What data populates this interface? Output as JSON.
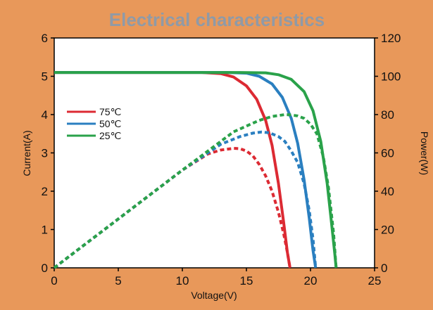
{
  "chart_data": {
    "type": "line",
    "title": "Electrical characteristics",
    "xlabel": "Voltage(V)",
    "ylabel_left": "Current(A)",
    "ylabel_right": "Power(W)",
    "xlim": [
      0,
      25
    ],
    "ylim_left": [
      0,
      6
    ],
    "ylim_right": [
      0,
      120
    ],
    "x_ticks": [
      0,
      5,
      10,
      15,
      20,
      25
    ],
    "y_left_ticks": [
      0,
      1,
      2,
      3,
      4,
      5,
      6
    ],
    "y_right_ticks": [
      0,
      20,
      40,
      60,
      80,
      100,
      120
    ],
    "grid": false,
    "legend_position": "left",
    "series": [
      {
        "name": "75℃",
        "color": "#dc2a33",
        "current": {
          "x": [
            0,
            11.5,
            13,
            14,
            15,
            15.8,
            16.5,
            17,
            17.5,
            17.9,
            18.2,
            18.4
          ],
          "y": [
            5.1,
            5.1,
            5.07,
            4.98,
            4.75,
            4.4,
            3.85,
            3.2,
            2.2,
            1.2,
            0.4,
            0
          ]
        },
        "power": {
          "x": [
            0,
            10,
            12,
            13,
            14,
            14.5,
            15,
            15.5,
            16,
            16.5,
            17,
            17.5,
            17.9,
            18.2,
            18.4
          ],
          "y": [
            0,
            51,
            59.5,
            61.5,
            62.4,
            62.2,
            61,
            58.5,
            54,
            48,
            40,
            29,
            18,
            8,
            0
          ]
        }
      },
      {
        "name": "50℃",
        "color": "#2a7fc0",
        "current": {
          "x": [
            0,
            13.5,
            15,
            16,
            17,
            17.8,
            18.5,
            19,
            19.5,
            19.9,
            20.2,
            20.4
          ],
          "y": [
            5.1,
            5.1,
            5.08,
            5.0,
            4.8,
            4.45,
            3.9,
            3.25,
            2.3,
            1.3,
            0.45,
            0
          ]
        },
        "power": {
          "x": [
            0,
            10,
            13,
            14.5,
            15.5,
            16.2,
            16.8,
            17.5,
            18,
            18.5,
            19,
            19.5,
            19.9,
            20.2,
            20.4
          ],
          "y": [
            0,
            51,
            64.5,
            68.5,
            70.3,
            70.9,
            70.5,
            68.5,
            66,
            61,
            55,
            44,
            30,
            15,
            0
          ]
        }
      },
      {
        "name": "25℃",
        "color": "#2aa24a",
        "current": {
          "x": [
            0,
            14.5,
            16.5,
            17.5,
            18.5,
            19.5,
            20.2,
            20.8,
            21.3,
            21.6,
            21.9,
            22.0
          ],
          "y": [
            5.1,
            5.1,
            5.09,
            5.04,
            4.92,
            4.6,
            4.1,
            3.3,
            2.2,
            1.3,
            0.35,
            0
          ]
        },
        "power": {
          "x": [
            0,
            10,
            14,
            16,
            17,
            18,
            18.5,
            19,
            19.5,
            20,
            20.5,
            21,
            21.4,
            21.8,
            22.0
          ],
          "y": [
            0,
            51,
            71,
            77,
            79,
            80,
            79.8,
            79.3,
            78,
            75,
            70,
            58,
            42,
            18,
            0
          ]
        }
      }
    ]
  }
}
